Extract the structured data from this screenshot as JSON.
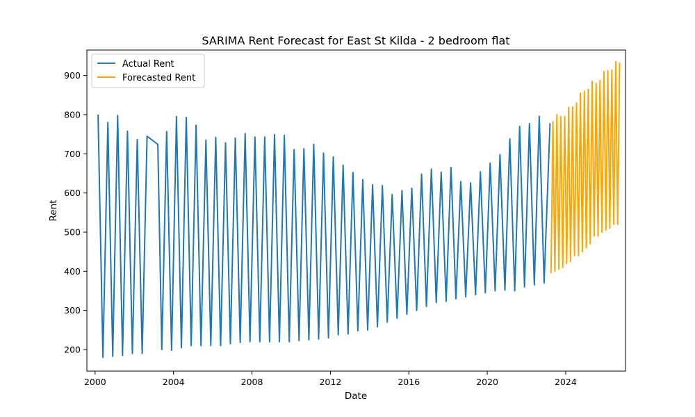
{
  "chart_data": {
    "type": "line",
    "title": "SARIMA Rent Forecast for East St Kilda - 2 bedroom flat",
    "xlabel": "Date",
    "ylabel": "Rent",
    "xlim": [
      1999.58,
      2027.05
    ],
    "ylim": [
      145,
      965
    ],
    "x_ticks": [
      "2000",
      "2004",
      "2008",
      "2012",
      "2016",
      "2020",
      "2024"
    ],
    "x_tick_values": [
      2000,
      2004,
      2008,
      2012,
      2016,
      2020,
      2024
    ],
    "y_ticks": [
      "200",
      "300",
      "400",
      "500",
      "600",
      "700",
      "800",
      "900"
    ],
    "y_tick_values": [
      200,
      300,
      400,
      500,
      600,
      700,
      800,
      900
    ],
    "legend_position": "upper-left",
    "grid": false,
    "series": [
      {
        "name": "Actual Rent",
        "color": "#1f77b4",
        "points": [
          [
            2000.15,
            800
          ],
          [
            2000.4,
            180
          ],
          [
            2000.65,
            780
          ],
          [
            2000.9,
            183
          ],
          [
            2001.15,
            798
          ],
          [
            2001.4,
            185
          ],
          [
            2001.65,
            758
          ],
          [
            2001.9,
            190
          ],
          [
            2002.15,
            736
          ],
          [
            2002.4,
            190
          ],
          [
            2002.65,
            745
          ],
          [
            2003.2,
            724
          ],
          [
            2003.4,
            200
          ],
          [
            2003.65,
            757
          ],
          [
            2003.9,
            198
          ],
          [
            2004.15,
            795
          ],
          [
            2004.4,
            205
          ],
          [
            2004.65,
            793
          ],
          [
            2004.9,
            210
          ],
          [
            2005.15,
            773
          ],
          [
            2005.4,
            210
          ],
          [
            2005.65,
            735
          ],
          [
            2005.9,
            210
          ],
          [
            2006.15,
            742
          ],
          [
            2006.4,
            210
          ],
          [
            2006.65,
            728
          ],
          [
            2006.9,
            215
          ],
          [
            2007.15,
            740
          ],
          [
            2007.4,
            218
          ],
          [
            2007.65,
            752
          ],
          [
            2007.9,
            220
          ],
          [
            2008.15,
            743
          ],
          [
            2008.4,
            220
          ],
          [
            2008.65,
            743
          ],
          [
            2008.9,
            220
          ],
          [
            2009.15,
            749
          ],
          [
            2009.4,
            220
          ],
          [
            2009.65,
            747
          ],
          [
            2009.9,
            220
          ],
          [
            2010.15,
            711
          ],
          [
            2010.4,
            223
          ],
          [
            2010.65,
            713
          ],
          [
            2010.9,
            225
          ],
          [
            2011.15,
            724
          ],
          [
            2011.4,
            227
          ],
          [
            2011.65,
            702
          ],
          [
            2011.9,
            230
          ],
          [
            2012.15,
            692
          ],
          [
            2012.4,
            238
          ],
          [
            2012.65,
            671
          ],
          [
            2012.9,
            240
          ],
          [
            2013.15,
            652
          ],
          [
            2013.4,
            248
          ],
          [
            2013.65,
            634
          ],
          [
            2013.9,
            250
          ],
          [
            2014.15,
            621
          ],
          [
            2014.4,
            258
          ],
          [
            2014.65,
            619
          ],
          [
            2014.9,
            270
          ],
          [
            2015.15,
            596
          ],
          [
            2015.4,
            280
          ],
          [
            2015.65,
            606
          ],
          [
            2015.9,
            290
          ],
          [
            2016.15,
            612
          ],
          [
            2016.4,
            300
          ],
          [
            2016.65,
            648
          ],
          [
            2016.9,
            310
          ],
          [
            2017.15,
            661
          ],
          [
            2017.4,
            320
          ],
          [
            2017.65,
            653
          ],
          [
            2017.9,
            323
          ],
          [
            2018.15,
            665
          ],
          [
            2018.4,
            330
          ],
          [
            2018.65,
            629
          ],
          [
            2018.9,
            335
          ],
          [
            2019.15,
            626
          ],
          [
            2019.4,
            340
          ],
          [
            2019.65,
            654
          ],
          [
            2019.9,
            345
          ],
          [
            2020.15,
            676
          ],
          [
            2020.4,
            350
          ],
          [
            2020.65,
            698
          ],
          [
            2020.9,
            352
          ],
          [
            2021.15,
            738
          ],
          [
            2021.4,
            350
          ],
          [
            2021.65,
            770
          ],
          [
            2021.9,
            360
          ],
          [
            2022.15,
            777
          ],
          [
            2022.4,
            365
          ],
          [
            2022.65,
            796
          ],
          [
            2022.9,
            370
          ],
          [
            2023.2,
            778
          ]
        ]
      },
      {
        "name": "Forecasted Rent",
        "color": "#ffa500",
        "points": [
          [
            2023.25,
            395
          ],
          [
            2023.35,
            782
          ],
          [
            2023.45,
            400
          ],
          [
            2023.55,
            800
          ],
          [
            2023.65,
            405
          ],
          [
            2023.75,
            795
          ],
          [
            2023.85,
            410
          ],
          [
            2023.95,
            795
          ],
          [
            2024.05,
            420
          ],
          [
            2024.15,
            818
          ],
          [
            2024.25,
            425
          ],
          [
            2024.35,
            820
          ],
          [
            2024.45,
            440
          ],
          [
            2024.55,
            830
          ],
          [
            2024.65,
            440
          ],
          [
            2024.75,
            855
          ],
          [
            2024.85,
            450
          ],
          [
            2024.95,
            860
          ],
          [
            2025.05,
            460
          ],
          [
            2025.15,
            865
          ],
          [
            2025.25,
            470
          ],
          [
            2025.35,
            885
          ],
          [
            2025.45,
            490
          ],
          [
            2025.55,
            880
          ],
          [
            2025.65,
            490
          ],
          [
            2025.75,
            888
          ],
          [
            2025.85,
            500
          ],
          [
            2025.95,
            910
          ],
          [
            2026.05,
            505
          ],
          [
            2026.15,
            912
          ],
          [
            2026.25,
            510
          ],
          [
            2026.35,
            914
          ],
          [
            2026.45,
            520
          ],
          [
            2026.55,
            935
          ],
          [
            2026.65,
            520
          ],
          [
            2026.75,
            933
          ]
        ]
      }
    ]
  }
}
